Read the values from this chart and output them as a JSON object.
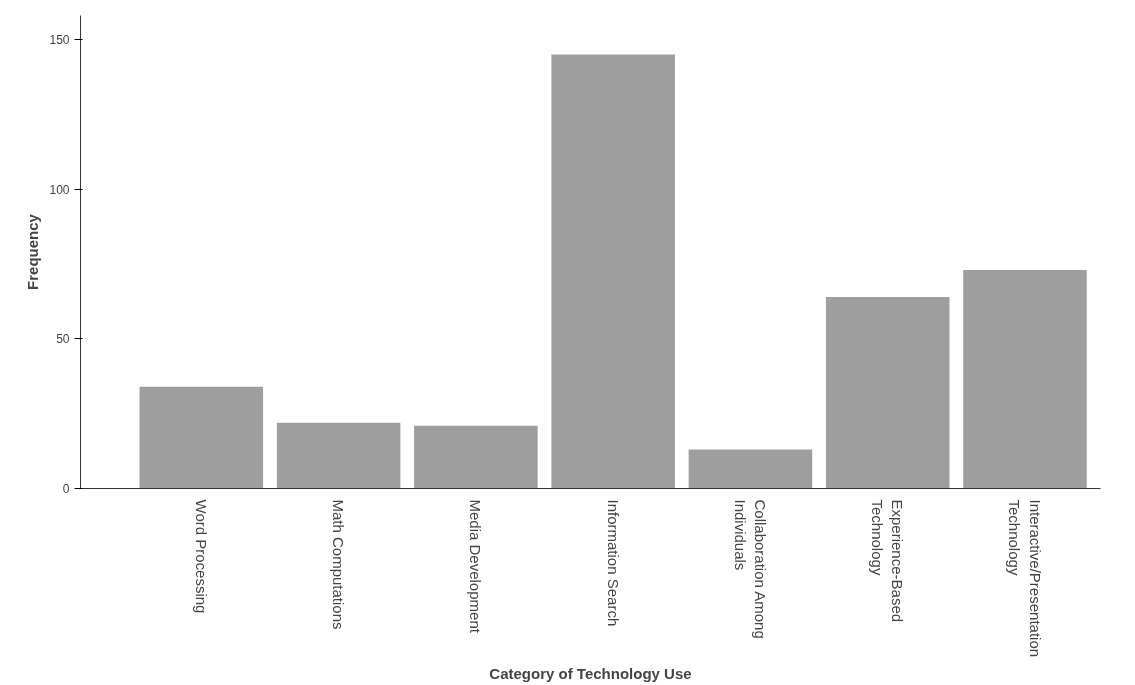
{
  "chart_data": {
    "type": "bar",
    "xlabel": "Category of Technology Use",
    "ylabel": "Frequency",
    "categories": [
      "Word Processing",
      "Math Computations",
      "Media Development",
      "Information Search",
      "Collaboration Among Individuals",
      "Experience-Based Technology",
      "Interactive/Presentation Technology"
    ],
    "values": [
      34,
      22,
      21,
      145,
      13,
      64,
      73
    ],
    "color": "#9e9e9e",
    "ylim": [
      0,
      158
    ],
    "yticks": [
      0,
      50,
      100,
      150
    ],
    "grid": false
  }
}
